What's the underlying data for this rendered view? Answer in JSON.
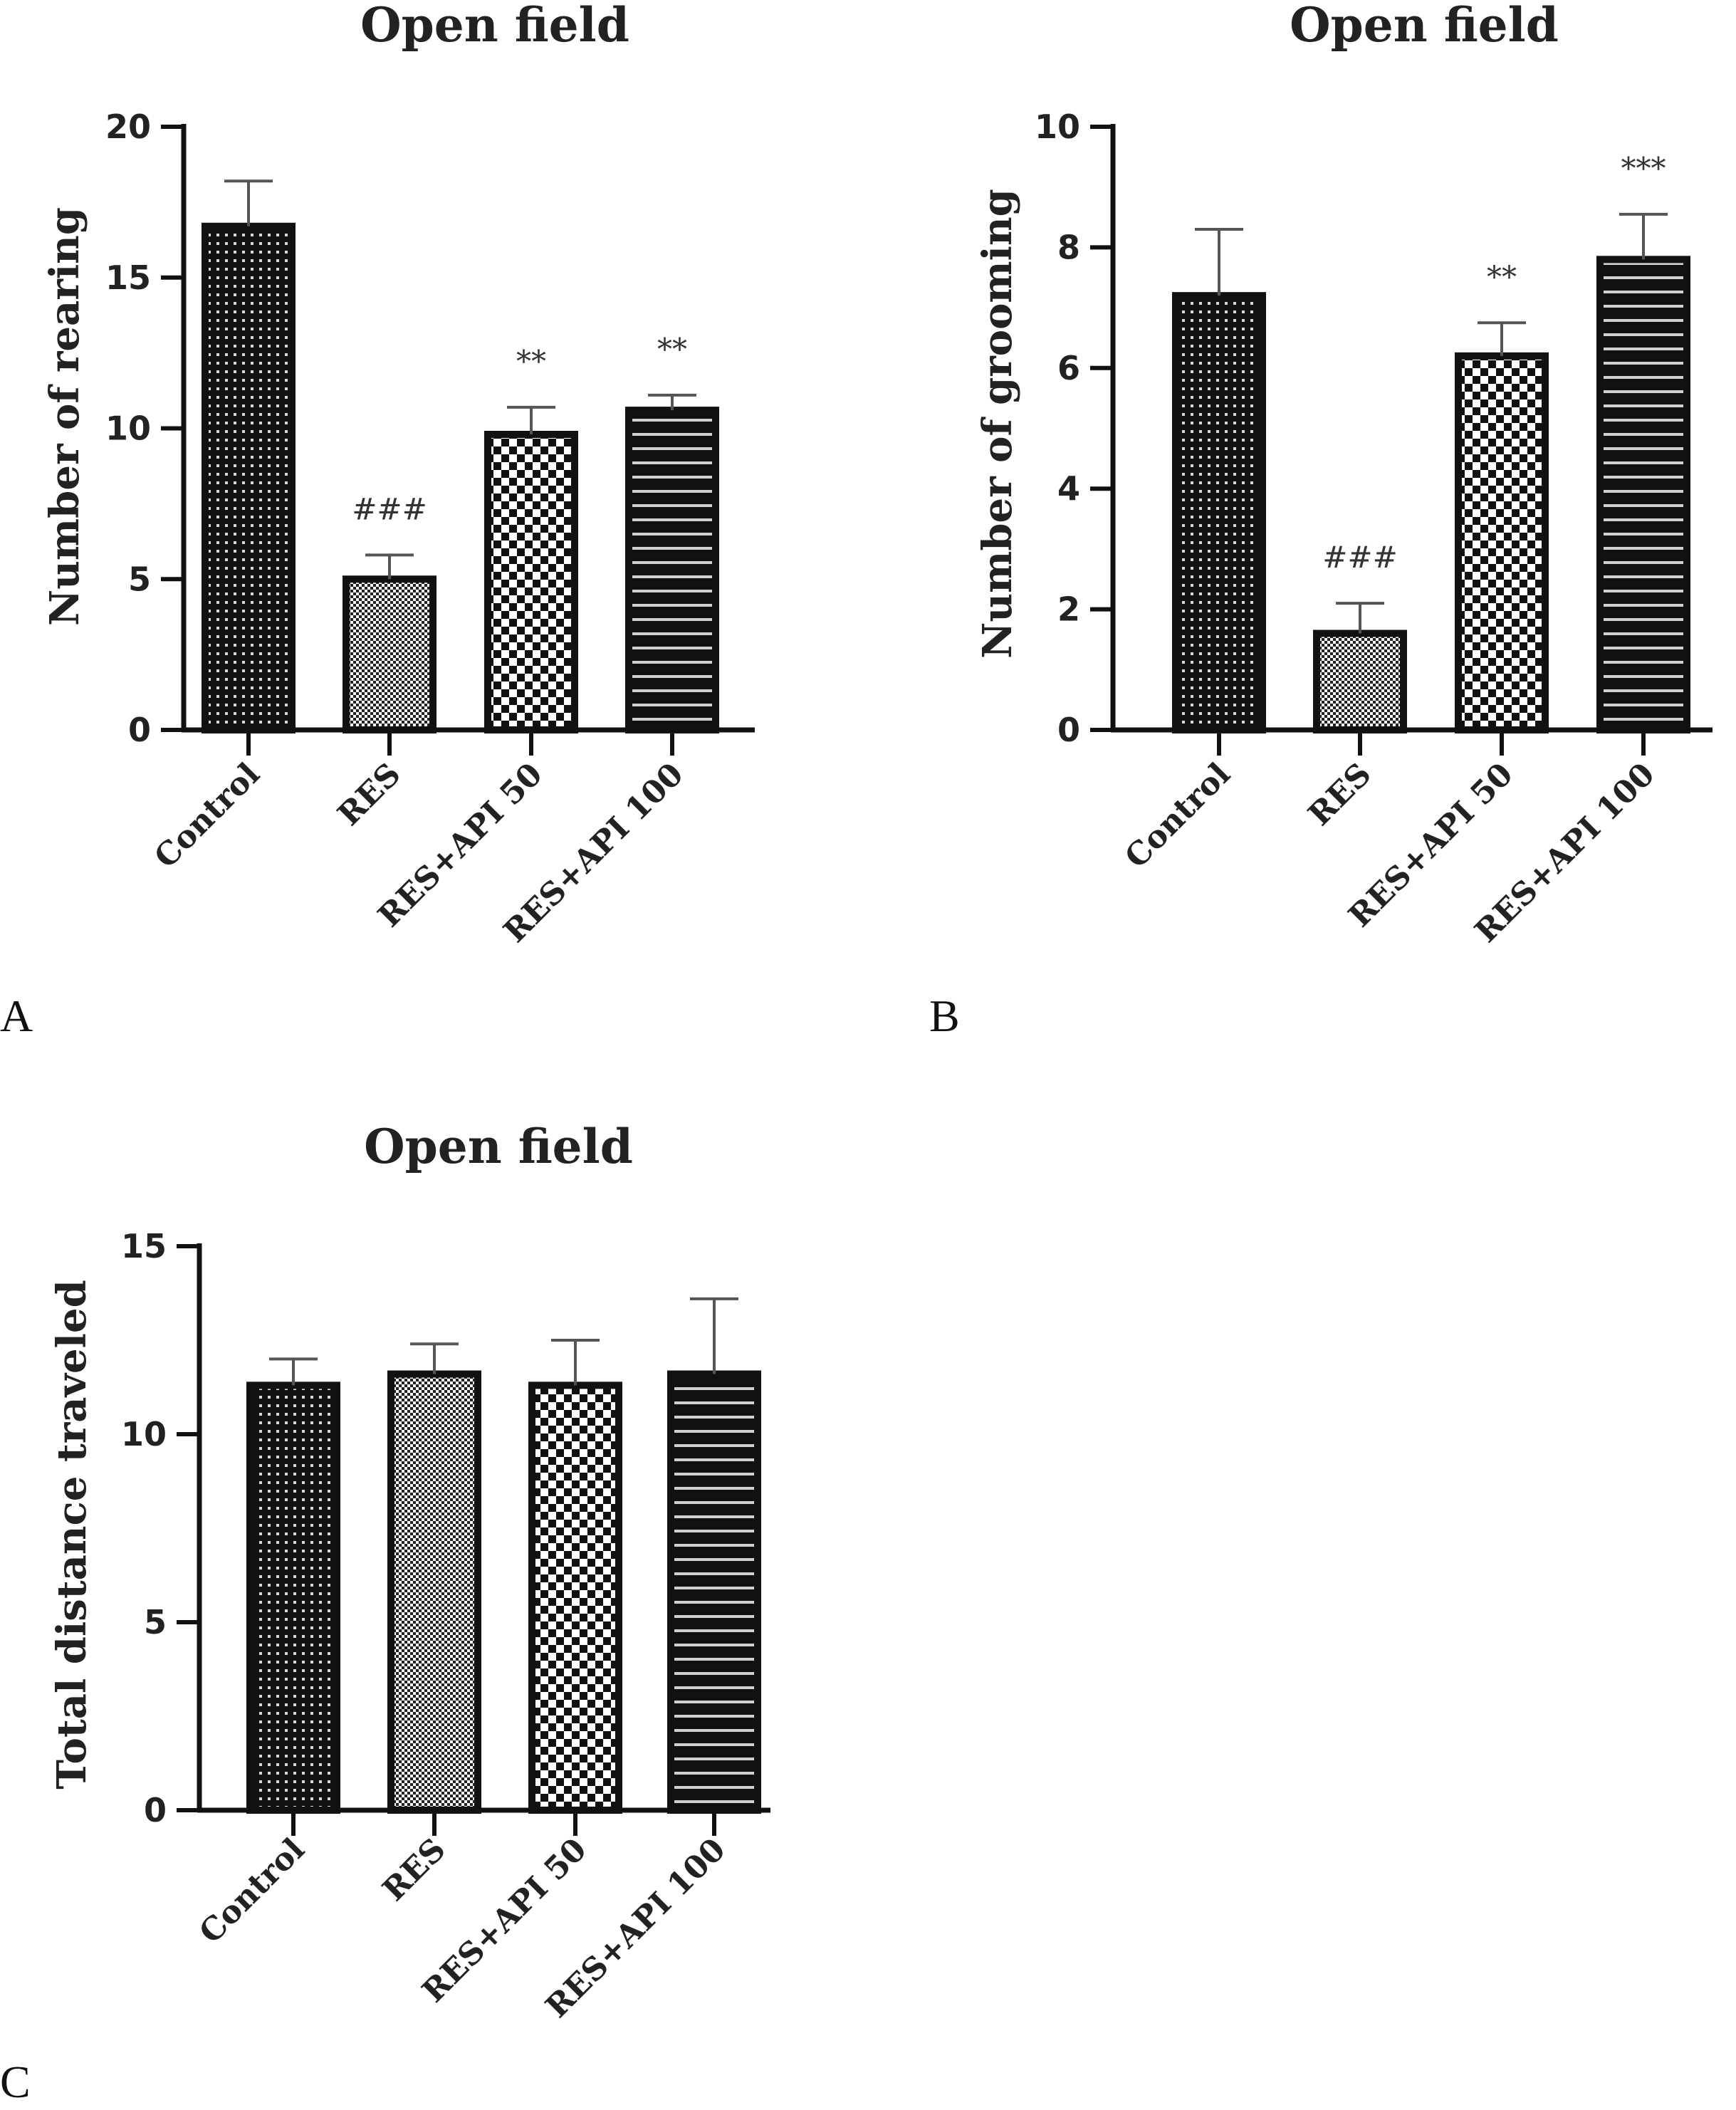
{
  "colors": {
    "fill": "#111111",
    "pattern": "#ffffff",
    "axis": "#111111",
    "error": "#555555"
  },
  "patterns": [
    "dots",
    "fine-check",
    "check",
    "stripes"
  ],
  "chart_data": [
    {
      "type": "bar",
      "panel": "A",
      "title": "Open field",
      "ylabel": "Number of rearing",
      "xlabel": "",
      "categories": [
        "Control",
        "RES",
        "RES+API 50",
        "RES+API 100"
      ],
      "values": [
        16.7,
        5.0,
        9.8,
        10.6
      ],
      "errors": [
        1.5,
        0.8,
        0.9,
        0.5
      ],
      "annotations": [
        "",
        "###",
        "**",
        "**"
      ],
      "ylim": [
        0,
        20
      ],
      "yticks": [
        "0",
        "5",
        "10",
        "15",
        "20"
      ]
    },
    {
      "type": "bar",
      "panel": "B",
      "title": "Open field",
      "ylabel": "Number of grooming",
      "xlabel": "",
      "categories": [
        "Control",
        "RES",
        "RES+API 50",
        "RES+API 100"
      ],
      "values": [
        7.2,
        1.6,
        6.2,
        7.8
      ],
      "errors": [
        1.1,
        0.5,
        0.55,
        0.75
      ],
      "annotations": [
        "",
        "###",
        "**",
        "***"
      ],
      "ylim": [
        0,
        10
      ],
      "yticks": [
        "0",
        "2",
        "4",
        "6",
        "8",
        "10"
      ]
    },
    {
      "type": "bar",
      "panel": "C",
      "title": "Open field",
      "ylabel": "Total distance traveled",
      "xlabel": "",
      "categories": [
        "Control",
        "RES",
        "RES+API 50",
        "RES+API 100"
      ],
      "values": [
        11.3,
        11.6,
        11.3,
        11.6
      ],
      "errors": [
        0.7,
        0.8,
        1.2,
        2.0
      ],
      "annotations": [
        "",
        "",
        "",
        ""
      ],
      "ylim": [
        0,
        15
      ],
      "yticks": [
        "0",
        "5",
        "10",
        "15"
      ]
    }
  ]
}
